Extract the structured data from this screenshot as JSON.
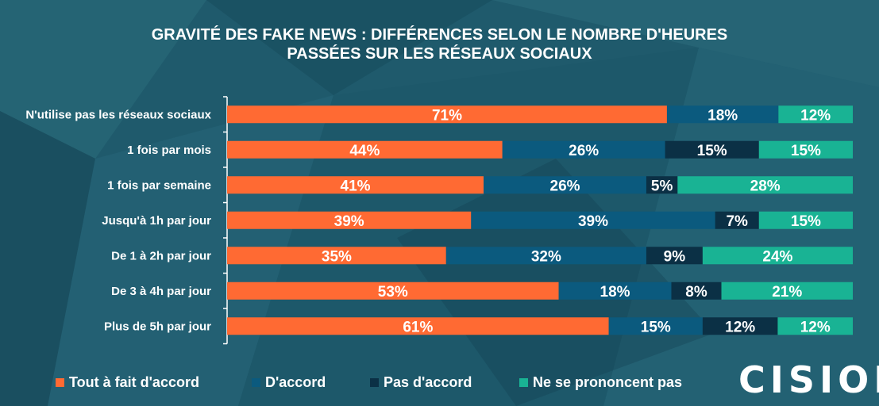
{
  "chart_data": {
    "type": "bar",
    "orientation": "horizontal",
    "stacked": true,
    "title_line1": "GRAVITÉ DES FAKE NEWS : DIFFÉRENCES SELON LE NOMBRE D'HEURES",
    "title_line2": "PASSÉES SUR LES RÉSEAUX SOCIAUX",
    "categories": [
      "N'utilise pas les réseaux sociaux",
      "1 fois par mois",
      "1 fois par semaine",
      "Jusqu'à 1h par jour",
      "De 1 à 2h par jour",
      "De 3 à 4h par jour",
      "Plus de 5h par jour"
    ],
    "series": [
      {
        "name": "Tout à fait d'accord",
        "color": "#ff6a33",
        "values": [
          71,
          44,
          41,
          39,
          35,
          53,
          61
        ]
      },
      {
        "name": "D'accord",
        "color": "#0b5a7e",
        "values": [
          18,
          26,
          26,
          39,
          32,
          18,
          15
        ]
      },
      {
        "name": "Pas d'accord",
        "color": "#0b3045",
        "values": [
          0,
          15,
          5,
          7,
          9,
          8,
          12
        ]
      },
      {
        "name": "Ne se prononcent pas",
        "color": "#19b394",
        "values": [
          12,
          15,
          28,
          15,
          24,
          21,
          12
        ]
      }
    ],
    "value_suffix": "%",
    "legend_position": "bottom",
    "grid": false
  },
  "brand": {
    "logo_text": "CISION",
    "logo_mark": "®"
  },
  "colors": {
    "background": "#1f5a6c",
    "text": "#ffffff"
  }
}
